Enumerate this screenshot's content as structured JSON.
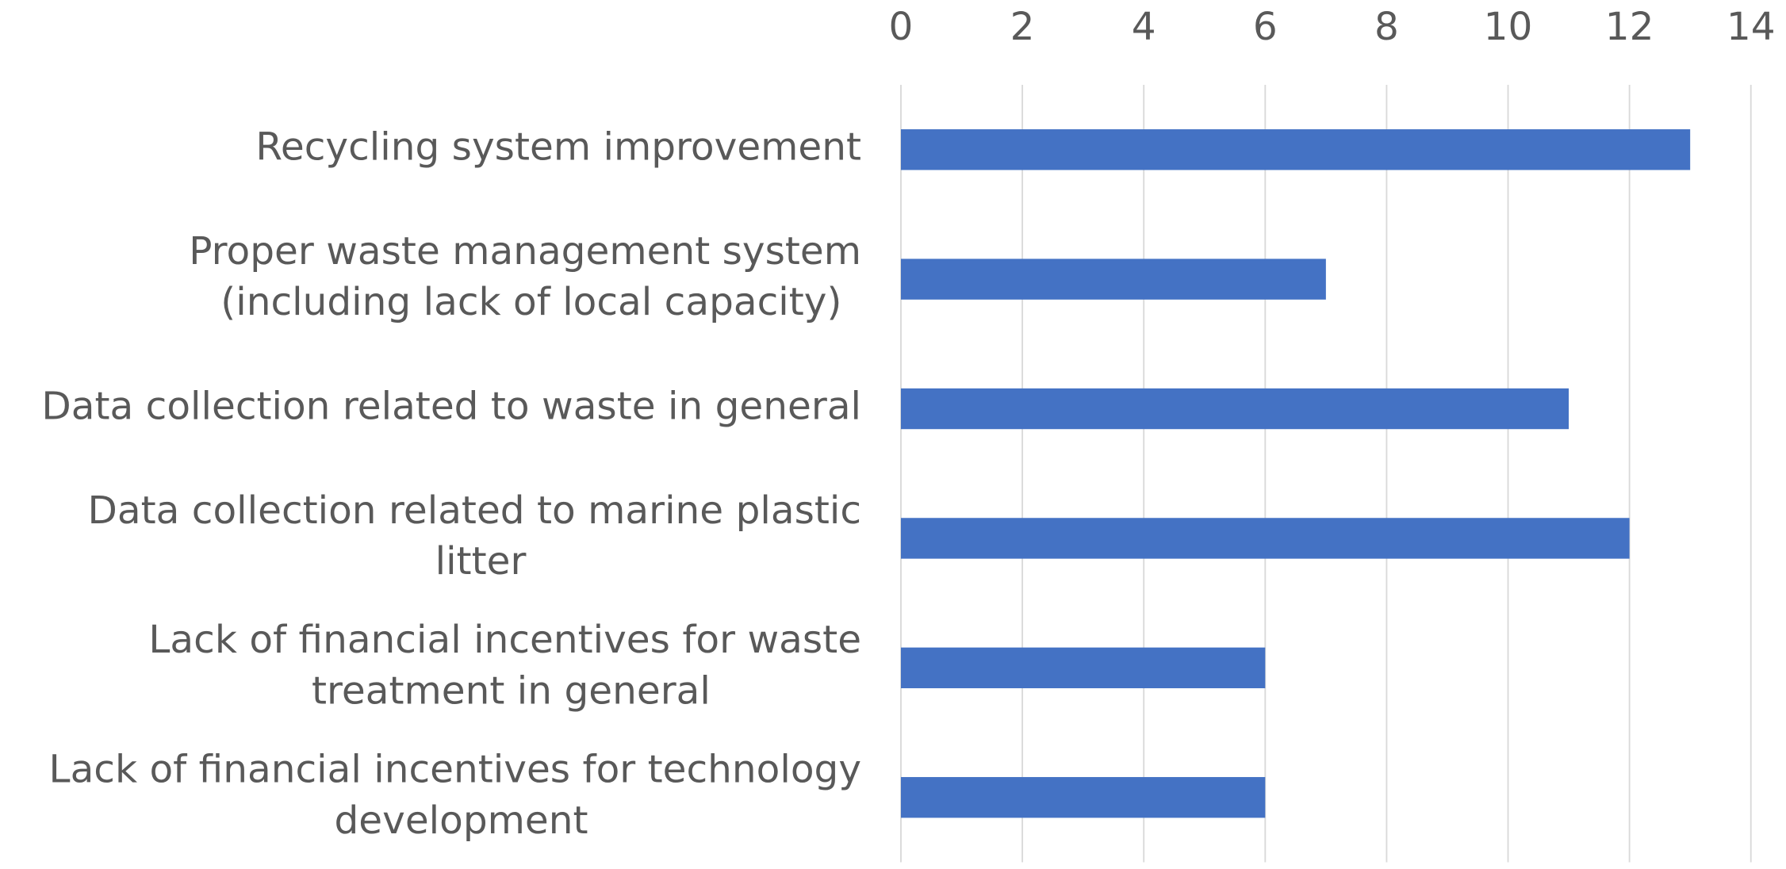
{
  "chart_data": {
    "type": "hbar",
    "categories": [
      "Recycling system improvement",
      "Proper waste management system (including lack of local capacity)",
      "Data collection related to waste in general",
      "Data collection related to marine plastic litter",
      "Lack of financial incentives for waste treatment in general",
      "Lack of financial incentives for technology development"
    ],
    "values": [
      13,
      7,
      11,
      12,
      6,
      6
    ],
    "color": "#4472c4",
    "xlim": [
      0,
      14
    ],
    "xticks": [
      0,
      2,
      4,
      6,
      8,
      10,
      12,
      14
    ],
    "grid": true
  }
}
